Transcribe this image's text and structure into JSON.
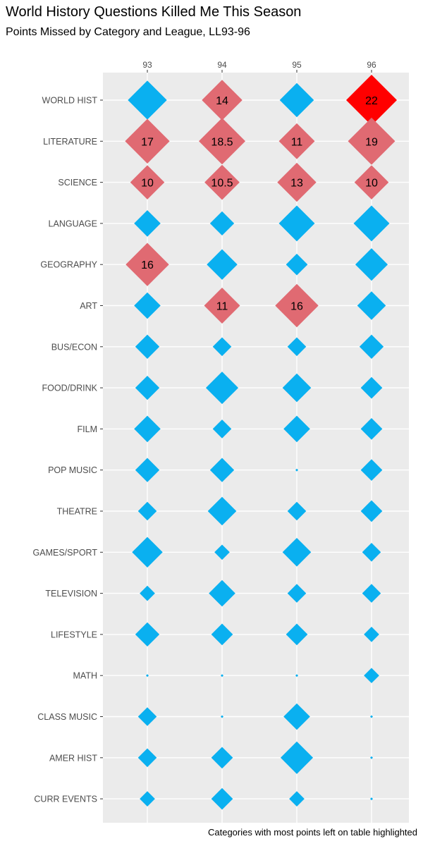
{
  "title": "World History Questions Killed Me This Season",
  "subtitle": "Points Missed by Category and League, LL93-96",
  "caption": "Categories with most points left on table highlighted",
  "colors": {
    "normal": "#0AB0F0",
    "highlight": "#E06A72",
    "max_highlight": "#FF0000",
    "panel": "#EBEBEB",
    "grid": "#FFFFFF",
    "tick_text": "#4D4D4D"
  },
  "chart_data": {
    "type": "scatter",
    "marker": "diamond",
    "x": [
      "93",
      "94",
      "95",
      "96"
    ],
    "x_position": "top",
    "categories": [
      "WORLD HIST",
      "LITERATURE",
      "SCIENCE",
      "LANGUAGE",
      "GEOGRAPHY",
      "ART",
      "BUS/ECON",
      "FOOD/DRINK",
      "FILM",
      "POP MUSIC",
      "THEATRE",
      "GAMES/SPORT",
      "TELEVISION",
      "LIFESTYLE",
      "MATH",
      "CLASS MUSIC",
      "AMER HIST",
      "CURR EVENTS"
    ],
    "size_scale_max": 22,
    "grid": true,
    "legend": "none",
    "values": [
      [
        13,
        14,
        10,
        22
      ],
      [
        17,
        18.5,
        11,
        19
      ],
      [
        10,
        10.5,
        13,
        10
      ],
      [
        6,
        5,
        11,
        11
      ],
      [
        16,
        8,
        4,
        9
      ],
      [
        6,
        11,
        16,
        7
      ],
      [
        5,
        3,
        3,
        5
      ],
      [
        5,
        9,
        7,
        4
      ],
      [
        6,
        3,
        6,
        4
      ],
      [
        5,
        5,
        0,
        4
      ],
      [
        3,
        7,
        3,
        4
      ],
      [
        8,
        2,
        7,
        3
      ],
      [
        2,
        6,
        3,
        3
      ],
      [
        5,
        4,
        4,
        2
      ],
      [
        0,
        0,
        0,
        2
      ],
      [
        3,
        0,
        6,
        0
      ],
      [
        3,
        4,
        9,
        0
      ],
      [
        2,
        4,
        2,
        0
      ]
    ],
    "highlight": [
      [
        false,
        true,
        false,
        "max"
      ],
      [
        true,
        true,
        true,
        true
      ],
      [
        true,
        true,
        true,
        true
      ],
      [
        false,
        false,
        false,
        false
      ],
      [
        true,
        false,
        false,
        false
      ],
      [
        false,
        true,
        true,
        false
      ],
      [
        false,
        false,
        false,
        false
      ],
      [
        false,
        false,
        false,
        false
      ],
      [
        false,
        false,
        false,
        false
      ],
      [
        false,
        false,
        false,
        false
      ],
      [
        false,
        false,
        false,
        false
      ],
      [
        false,
        false,
        false,
        false
      ],
      [
        false,
        false,
        false,
        false
      ],
      [
        false,
        false,
        false,
        false
      ],
      [
        false,
        false,
        false,
        false
      ],
      [
        false,
        false,
        false,
        false
      ],
      [
        false,
        false,
        false,
        false
      ],
      [
        false,
        false,
        false,
        false
      ]
    ],
    "labels": [
      [
        "",
        "14",
        "",
        "22"
      ],
      [
        "17",
        "18.5",
        "11",
        "19"
      ],
      [
        "10",
        "10.5",
        "13",
        "10"
      ],
      [
        "",
        "",
        "",
        ""
      ],
      [
        "16",
        "",
        "",
        ""
      ],
      [
        "",
        "11",
        "16",
        ""
      ],
      [
        "",
        "",
        "",
        ""
      ],
      [
        "",
        "",
        "",
        ""
      ],
      [
        "",
        "",
        "",
        ""
      ],
      [
        "",
        "",
        "",
        ""
      ],
      [
        "",
        "",
        "",
        ""
      ],
      [
        "",
        "",
        "",
        ""
      ],
      [
        "",
        "",
        "",
        ""
      ],
      [
        "",
        "",
        "",
        ""
      ],
      [
        "",
        "",
        "",
        ""
      ],
      [
        "",
        "",
        "",
        ""
      ],
      [
        "",
        "",
        "",
        ""
      ],
      [
        "",
        "",
        "",
        ""
      ]
    ]
  }
}
